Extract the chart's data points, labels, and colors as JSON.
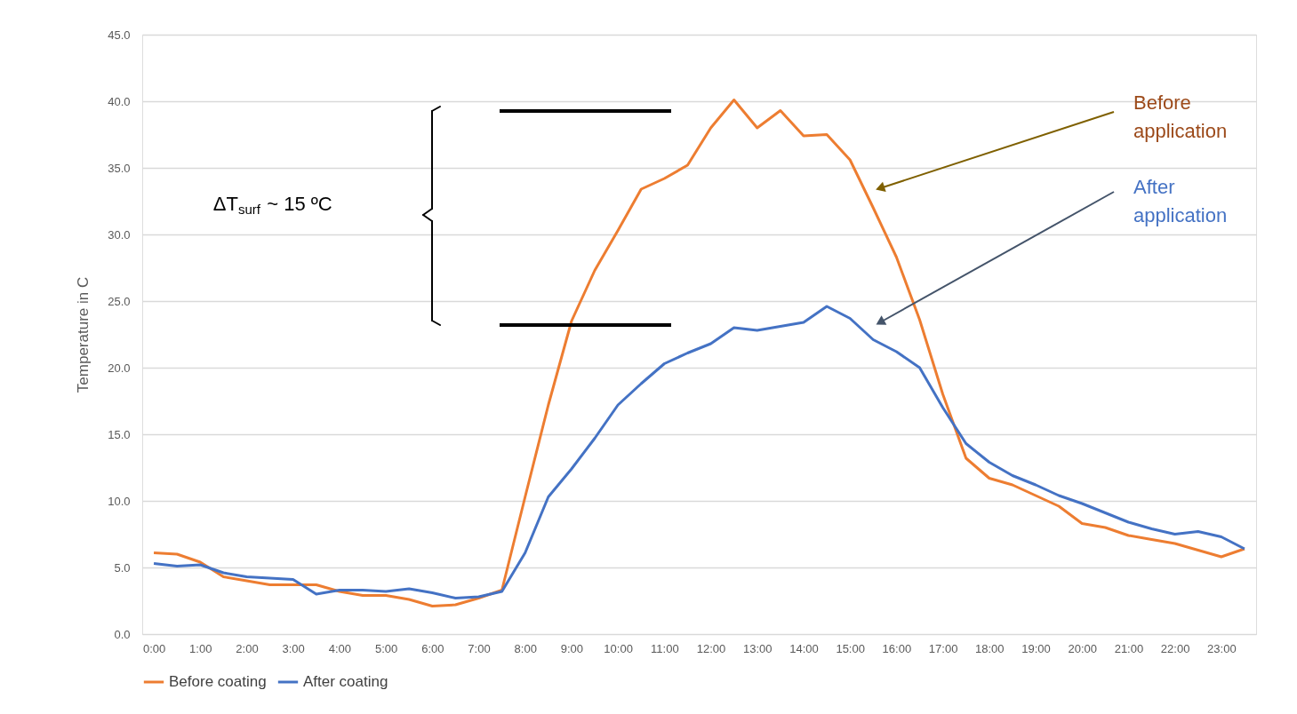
{
  "chart_data": {
    "type": "line",
    "categories": [
      "0:00",
      null,
      "1:00",
      null,
      "2:00",
      null,
      "3:00",
      null,
      "4:00",
      null,
      "5:00",
      null,
      "6:00",
      null,
      "7:00",
      null,
      "8:00",
      null,
      "9:00",
      null,
      "10:00",
      null,
      "11:00",
      null,
      "12:00",
      null,
      "13:00",
      null,
      "14:00",
      null,
      "15:00",
      null,
      "16:00",
      null,
      "17:00",
      null,
      "18:00",
      null,
      "19:00",
      null,
      "20:00",
      null,
      "21:00",
      null,
      "22:00",
      null,
      "23:00",
      null
    ],
    "series": [
      {
        "name": "Before coating",
        "color": "#ed7d31",
        "values": [
          6.1,
          6.0,
          5.4,
          4.3,
          4.0,
          3.7,
          3.7,
          3.7,
          3.2,
          2.9,
          2.9,
          2.6,
          2.1,
          2.2,
          2.7,
          3.3,
          10.3,
          17.2,
          23.5,
          27.3,
          30.3,
          33.4,
          34.2,
          35.2,
          38.0,
          40.1,
          38.0,
          39.3,
          37.4,
          37.5,
          35.6,
          32.0,
          28.3,
          23.6,
          18.0,
          13.2,
          11.7,
          11.2,
          10.4,
          9.6,
          8.3,
          8.0,
          7.4,
          7.1,
          6.8,
          6.3,
          5.8,
          6.4
        ]
      },
      {
        "name": "After coating",
        "color": "#4472c4",
        "values": [
          5.3,
          5.1,
          5.2,
          4.6,
          4.3,
          4.2,
          4.1,
          3.0,
          3.3,
          3.3,
          3.2,
          3.4,
          3.1,
          2.7,
          2.8,
          3.2,
          6.1,
          10.3,
          12.4,
          14.7,
          17.2,
          18.8,
          20.3,
          21.1,
          21.8,
          23.0,
          22.8,
          23.1,
          23.4,
          24.6,
          23.7,
          22.1,
          21.2,
          20.0,
          17.0,
          14.3,
          12.9,
          11.9,
          11.2,
          10.4,
          9.8,
          9.1,
          8.4,
          7.9,
          7.5,
          7.7,
          7.3,
          6.4
        ]
      }
    ],
    "ylabel": "Temperature in C",
    "ylim": [
      0,
      45
    ],
    "yticks": [
      {
        "value": 0,
        "label": "0.0"
      },
      {
        "value": 5,
        "label": "5.0"
      },
      {
        "value": 10,
        "label": "10.0"
      },
      {
        "value": 15,
        "label": "15.0"
      },
      {
        "value": 20,
        "label": "20.0"
      },
      {
        "value": 25,
        "label": "25.0"
      },
      {
        "value": 30,
        "label": "30.0"
      },
      {
        "value": 35,
        "label": "35.0"
      },
      {
        "value": 40,
        "label": "40.0"
      },
      {
        "value": 45,
        "label": "45.0"
      }
    ],
    "annotations": [
      "ΔT$_{surf}$ ~ 15 ºC",
      "Before application",
      "After application"
    ],
    "grid": "y",
    "legend": "bottom",
    "marker": "none",
    "line_style": "solid"
  }
}
